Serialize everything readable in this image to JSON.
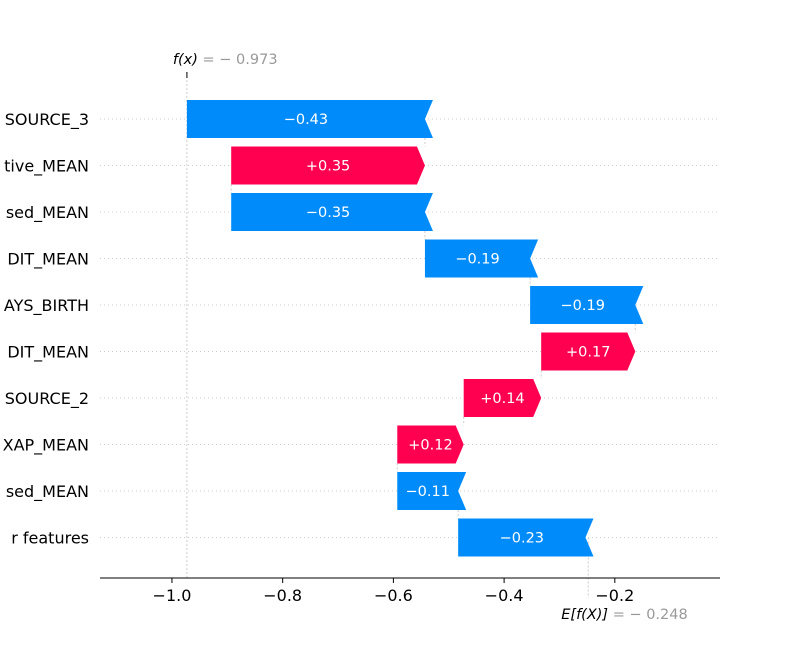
{
  "chart_data": {
    "type": "waterfall",
    "base_value": -0.248,
    "final_value": -0.973,
    "fx_label_fn": "f(x)",
    "fx_label_value": "= − 0.973",
    "ex_label_fn": "E[f(X)]",
    "ex_label_value": "= − 0.248",
    "xlim": [
      -1.13,
      -0.01
    ],
    "xticks": [
      -1.0,
      -0.8,
      -0.6,
      -0.4,
      -0.2
    ],
    "xtick_labels": [
      "−1.0",
      "−0.8",
      "−0.6",
      "−0.4",
      "−0.2"
    ],
    "features": [
      {
        "name": "SOURCE_3",
        "value": -0.43,
        "label": "−0.43"
      },
      {
        "name": "tive_MEAN",
        "value": 0.35,
        "label": "+0.35"
      },
      {
        "name": "sed_MEAN",
        "value": -0.35,
        "label": "−0.35"
      },
      {
        "name": "DIT_MEAN",
        "value": -0.19,
        "label": "−0.19"
      },
      {
        "name": "AYS_BIRTH",
        "value": -0.19,
        "label": "−0.19"
      },
      {
        "name": "DIT_MEAN",
        "value": 0.17,
        "label": "+0.17"
      },
      {
        "name": "SOURCE_2",
        "value": 0.14,
        "label": "+0.14"
      },
      {
        "name": "XAP_MEAN",
        "value": 0.12,
        "label": "+0.12"
      },
      {
        "name": "sed_MEAN",
        "value": -0.11,
        "label": "−0.11"
      },
      {
        "name": "r features",
        "value": -0.23,
        "label": "−0.23"
      }
    ],
    "colors": {
      "positive": "#ff0051",
      "negative": "#008bfb",
      "axis": "#000000",
      "grid": "#cccccc",
      "value_note": "#999999"
    }
  }
}
